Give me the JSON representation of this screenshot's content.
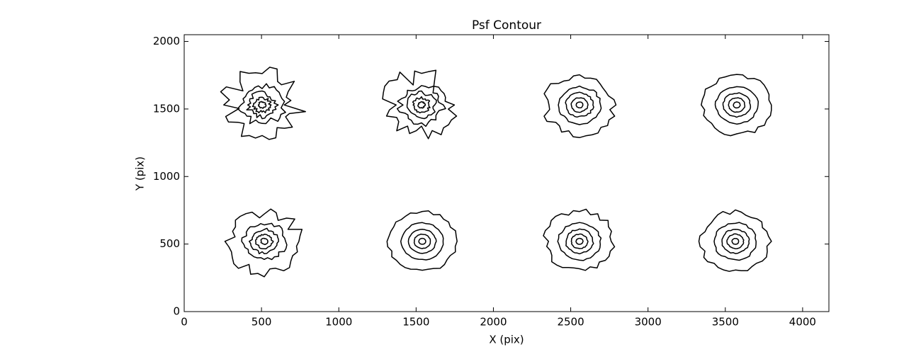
{
  "chart_data": {
    "type": "contour",
    "title": "Psf Contour",
    "x_label": "X (pix)",
    "y_label": "Y (pix)",
    "x": [
      504,
      1535,
      2557,
      3574,
      518,
      1540,
      2557,
      3565
    ],
    "values": [
      1530,
      1530,
      1530,
      1530,
      520,
      520,
      520,
      520
    ],
    "xlim": [
      0,
      4170
    ],
    "ylim": [
      0,
      2050
    ],
    "xticks": [
      0,
      500,
      1000,
      1500,
      2000,
      2500,
      3000,
      3500,
      4000
    ],
    "yticks": [
      0,
      500,
      1000,
      1500,
      2000
    ],
    "color": "#000000",
    "grid": false
  }
}
